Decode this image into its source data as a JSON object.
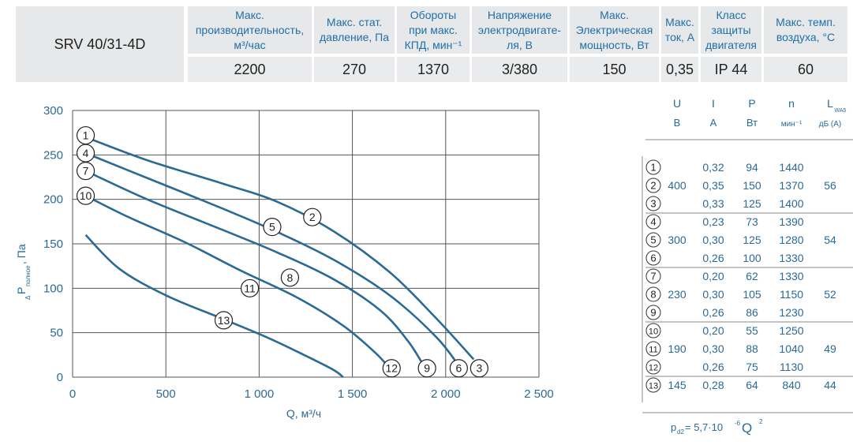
{
  "specs": {
    "model": "SRV 40/31-4D",
    "columns": [
      {
        "h1": "Макс.",
        "h2": "производительность,",
        "h3": "м³/час",
        "value": "2200"
      },
      {
        "h1": "Макс. стат.",
        "h2": "давление, Па",
        "h3": "",
        "value": "270"
      },
      {
        "h1": "Обороты",
        "h2": "при макс.",
        "h3": "КПД, мин⁻¹",
        "value": "1370"
      },
      {
        "h1": "Напряжение",
        "h2": "электродвигате-",
        "h3": "ля, В",
        "value": "3/380"
      },
      {
        "h1": "Макс.",
        "h2": "Электрическая",
        "h3": "мощность, Вт",
        "value": "150"
      },
      {
        "h1": "Макс.",
        "h2": "ток, А",
        "h3": "",
        "value": "0,35"
      },
      {
        "h1": "Класс",
        "h2": "защиты",
        "h3": "двигателя",
        "value": "IP 44"
      },
      {
        "h1": "Макс. темп.",
        "h2": "воздуха, °C",
        "h3": "",
        "value": "60"
      }
    ]
  },
  "chart_data": {
    "type": "line",
    "xlabel": "Q, м³/ч",
    "ylabel_main": "P",
    "ylabel_prefix": "Δ",
    "ylabel_sub": "полное",
    "ylabel_unit": ", Па",
    "xlim": [
      0,
      2500
    ],
    "ylim": [
      0,
      300
    ],
    "xticks": [
      0,
      500,
      1000,
      1500,
      2000,
      2500
    ],
    "xtick_labels": [
      "0",
      "500",
      "1 000",
      "1 500",
      "2 000",
      "2 500"
    ],
    "yticks": [
      0,
      50,
      100,
      150,
      200,
      250,
      300
    ],
    "ytick_labels": [
      "0",
      "50",
      "100",
      "150",
      "200",
      "250",
      "300"
    ],
    "grid": true,
    "color": "#2b6a94",
    "series": [
      {
        "id": "A",
        "points": [
          [
            70,
            270
          ],
          [
            400,
            244
          ],
          [
            800,
            218
          ],
          [
            1100,
            197
          ],
          [
            1400,
            164
          ],
          [
            1700,
            118
          ],
          [
            1950,
            66
          ],
          [
            2150,
            20
          ]
        ]
      },
      {
        "id": "B",
        "points": [
          [
            70,
            252
          ],
          [
            400,
            224
          ],
          [
            800,
            190
          ],
          [
            1100,
            163
          ],
          [
            1400,
            132
          ],
          [
            1700,
            92
          ],
          [
            1950,
            45
          ],
          [
            2080,
            10
          ]
        ]
      },
      {
        "id": "C",
        "points": [
          [
            70,
            232
          ],
          [
            400,
            200
          ],
          [
            800,
            166
          ],
          [
            1100,
            140
          ],
          [
            1400,
            110
          ],
          [
            1650,
            75
          ],
          [
            1800,
            40
          ],
          [
            1890,
            10
          ]
        ]
      },
      {
        "id": "D",
        "points": [
          [
            70,
            204
          ],
          [
            300,
            180
          ],
          [
            600,
            152
          ],
          [
            900,
            120
          ],
          [
            1200,
            90
          ],
          [
            1450,
            58
          ],
          [
            1620,
            28
          ],
          [
            1700,
            10
          ]
        ]
      },
      {
        "id": "E",
        "points": [
          [
            70,
            160
          ],
          [
            250,
            122
          ],
          [
            500,
            92
          ],
          [
            800,
            66
          ],
          [
            1050,
            44
          ],
          [
            1250,
            24
          ],
          [
            1400,
            8
          ],
          [
            1450,
            0
          ]
        ]
      }
    ],
    "markers": [
      {
        "label": "1",
        "x": 70,
        "y": 272
      },
      {
        "label": "4",
        "x": 70,
        "y": 252
      },
      {
        "label": "7",
        "x": 70,
        "y": 232
      },
      {
        "label": "10",
        "x": 70,
        "y": 204
      },
      {
        "label": "2",
        "x": 1285,
        "y": 180
      },
      {
        "label": "5",
        "x": 1070,
        "y": 169
      },
      {
        "label": "8",
        "x": 1165,
        "y": 112
      },
      {
        "label": "11",
        "x": 950,
        "y": 100
      },
      {
        "label": "13",
        "x": 810,
        "y": 64
      },
      {
        "label": "12",
        "x": 1710,
        "y": 10
      },
      {
        "label": "9",
        "x": 1900,
        "y": 10
      },
      {
        "label": "6",
        "x": 2070,
        "y": 10
      },
      {
        "label": "3",
        "x": 2180,
        "y": 10
      }
    ]
  },
  "motor_table": {
    "headers": [
      {
        "top": "U",
        "bottom": "В"
      },
      {
        "top": "I",
        "bottom": "А"
      },
      {
        "top": "P",
        "bottom": "Вт"
      },
      {
        "top": "n",
        "bottom": "мин⁻¹"
      },
      {
        "top": "L",
        "top_sub": "WA5",
        "bottom": "дБ (А)"
      }
    ],
    "groups": [
      {
        "U": "400",
        "L": "56",
        "rows": [
          {
            "num": "1",
            "I": "0,32",
            "P": "94",
            "n": "1440"
          },
          {
            "num": "2",
            "I": "0,35",
            "P": "150",
            "n": "1370"
          },
          {
            "num": "3",
            "I": "0,33",
            "P": "125",
            "n": "1400"
          }
        ]
      },
      {
        "U": "300",
        "L": "54",
        "rows": [
          {
            "num": "4",
            "I": "0,23",
            "P": "73",
            "n": "1390"
          },
          {
            "num": "5",
            "I": "0,30",
            "P": "125",
            "n": "1280"
          },
          {
            "num": "6",
            "I": "0,26",
            "P": "100",
            "n": "1330"
          }
        ]
      },
      {
        "U": "230",
        "L": "52",
        "rows": [
          {
            "num": "7",
            "I": "0,20",
            "P": "62",
            "n": "1330"
          },
          {
            "num": "8",
            "I": "0,30",
            "P": "105",
            "n": "1150"
          },
          {
            "num": "9",
            "I": "0,26",
            "P": "86",
            "n": "1230"
          }
        ]
      },
      {
        "U": "190",
        "L": "49",
        "rows": [
          {
            "num": "10",
            "I": "0,20",
            "P": "55",
            "n": "1250"
          },
          {
            "num": "11",
            "I": "0,30",
            "P": "88",
            "n": "1040"
          },
          {
            "num": "12",
            "I": "0,26",
            "P": "75",
            "n": "1130"
          }
        ]
      },
      {
        "U": "145",
        "L": "44",
        "rows": [
          {
            "num": "13",
            "I": "0,28",
            "P": "64",
            "n": "840"
          }
        ]
      }
    ],
    "formula": {
      "lhs": "p",
      "lhs_sub": "d2",
      "eq": " = 5,7·10",
      "exp": "-6",
      "q": " Q",
      "q_exp": "2"
    }
  }
}
